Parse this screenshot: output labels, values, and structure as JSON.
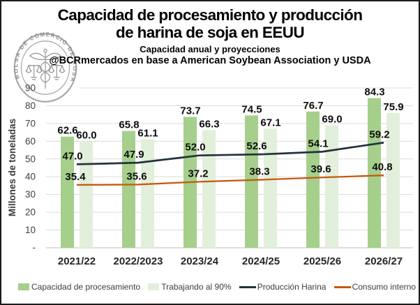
{
  "header": {
    "title_line1": "Capacidad de procesamiento y producción",
    "title_line2": "de harina de soja en EEUU",
    "subtitle": "Capacidad anual y proyecciones",
    "attribution": "@BCRmercados en base a American Soybean Association y USDA",
    "logo_text": "BOLSA DE COMERCIO DE ROSARIO"
  },
  "chart_data": {
    "type": "bar",
    "subtype": "combo-bar-line",
    "title": "Capacidad de procesamiento y producción de harina de soja en EEUU",
    "subtitle": "Capacidad anual y proyecciones",
    "source": "@BCRmercados en base a American Soybean Association y USDA",
    "categories": [
      "2021/22",
      "2022/2023",
      "2023/24",
      "2024/25",
      "2025/26",
      "2026/27"
    ],
    "series": [
      {
        "name": "Capacidad de procesamiento",
        "type": "bar",
        "color": "#a6cf8c",
        "values": [
          62.6,
          65.8,
          73.7,
          74.5,
          76.7,
          84.3
        ]
      },
      {
        "name": "Trabajando al 90%",
        "type": "bar",
        "color": "#e2efda",
        "values": [
          60.0,
          61.1,
          66.3,
          67.1,
          69.0,
          75.9
        ]
      },
      {
        "name": "Producción Harina",
        "type": "line",
        "color": "#24313d",
        "values": [
          47.0,
          47.9,
          52.0,
          52.6,
          54.1,
          59.2
        ]
      },
      {
        "name": "Consumo interno",
        "type": "line",
        "color": "#c55a11",
        "values": [
          35.4,
          35.6,
          37.2,
          38.3,
          39.6,
          40.8
        ]
      }
    ],
    "xlabel": "",
    "ylabel": "Millones de toneladas",
    "ylim": [
      0,
      90
    ],
    "y_tick_interval": 10,
    "y_zero_label": "-",
    "grid": true,
    "data_labels": true,
    "legend_position": "bottom",
    "colors": {
      "grid": "#dcdcdc",
      "axis": "#c9c9c9",
      "tick_text": "#404040",
      "data_label_text": "#0d0d0d",
      "logo_gray": "#9a9a9a"
    }
  }
}
